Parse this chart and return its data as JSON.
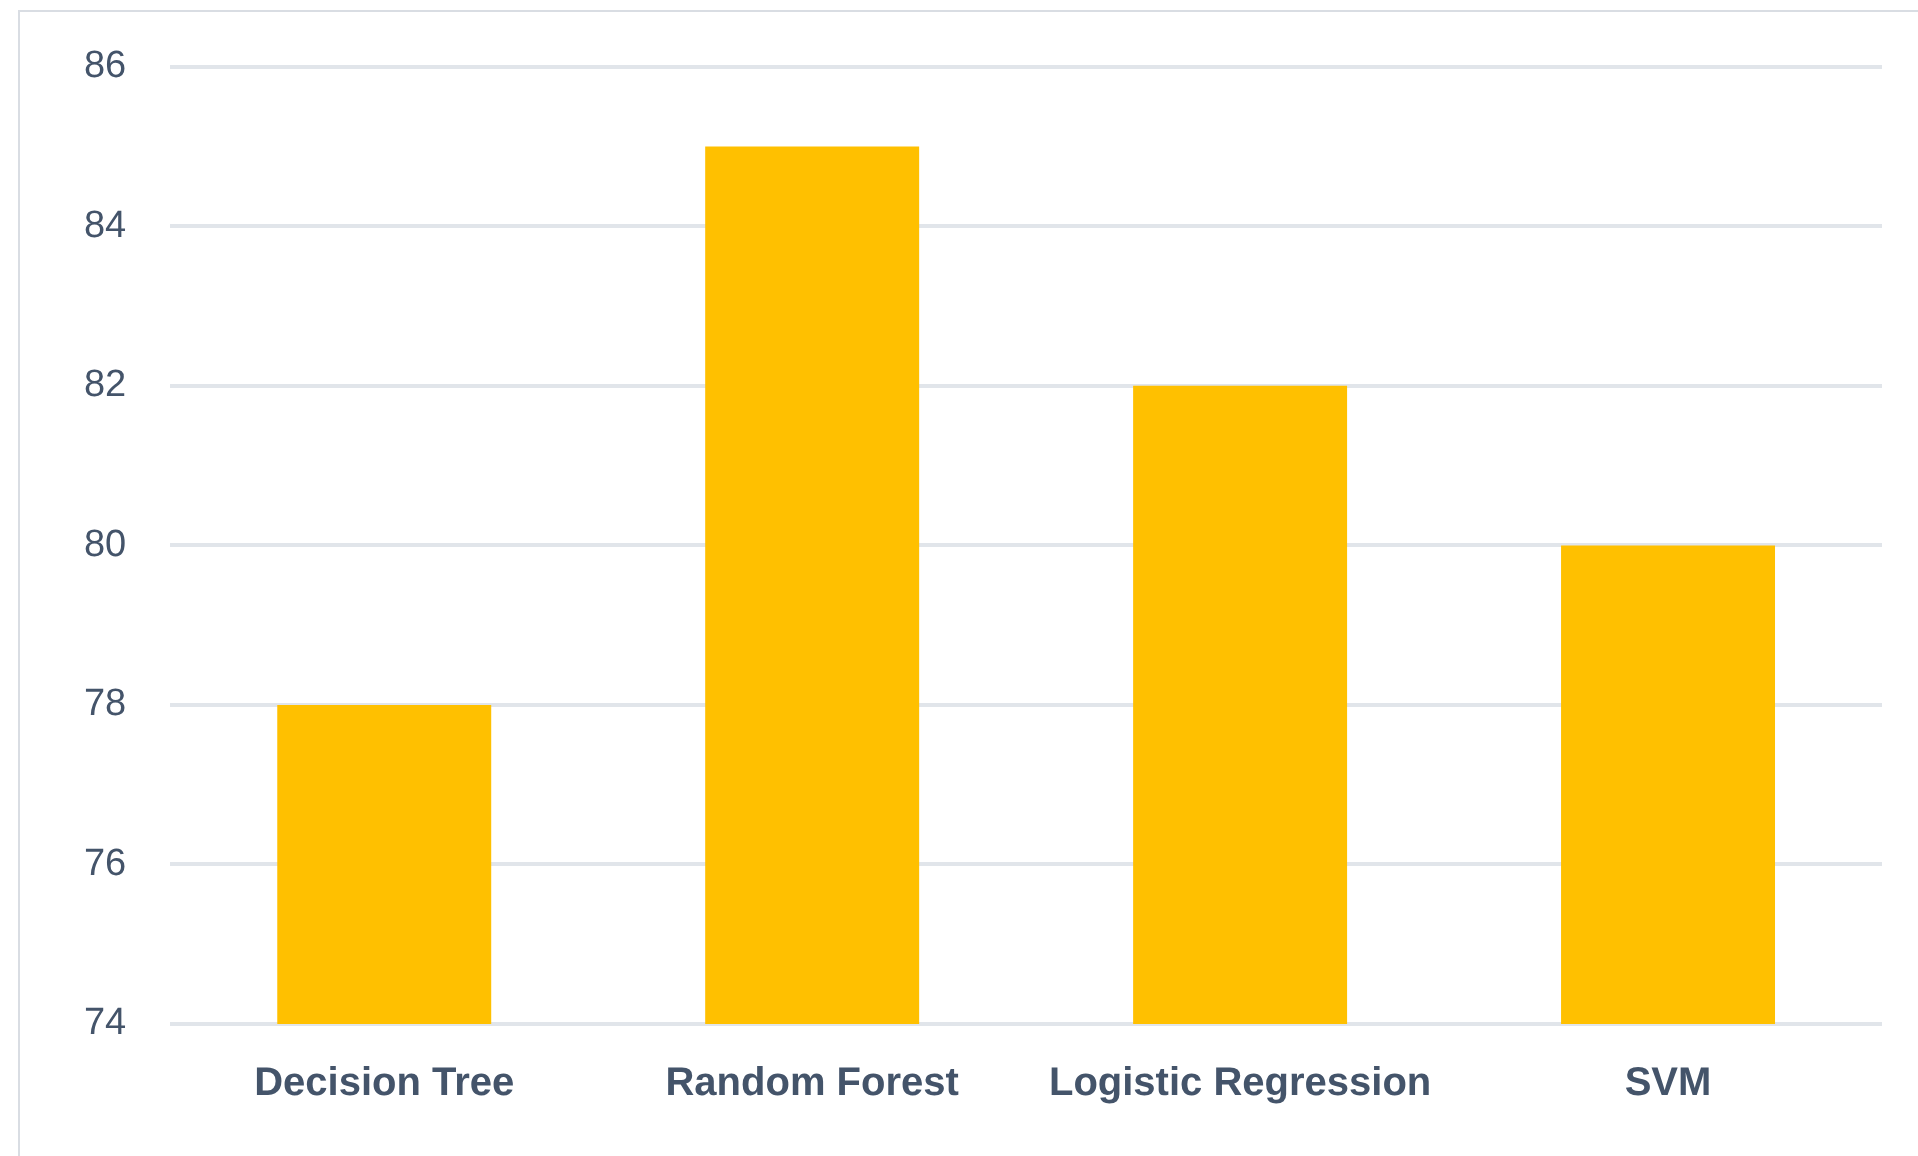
{
  "chart_data": {
    "type": "bar",
    "categories": [
      "Decision Tree",
      "Random Forest",
      "Logistic Regression",
      "SVM"
    ],
    "values": [
      78,
      85,
      82,
      80
    ],
    "color": "#ffc000",
    "ylim": [
      74,
      86
    ],
    "yticks": [
      74,
      76,
      78,
      80,
      82,
      84,
      86
    ],
    "grid": "y"
  }
}
